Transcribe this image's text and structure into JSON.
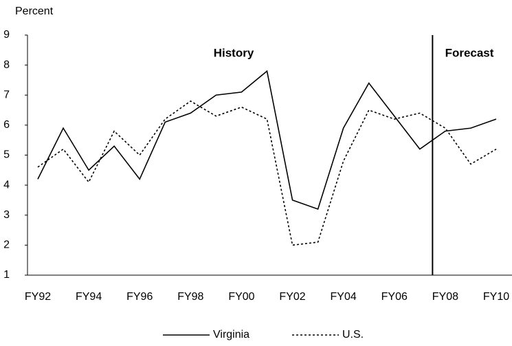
{
  "chart_data": {
    "type": "line",
    "y_label": "Percent",
    "annotations": [
      "History",
      "Forecast"
    ],
    "categories": [
      "FY92",
      null,
      "FY94",
      null,
      "FY96",
      null,
      "FY98",
      null,
      "FY00",
      null,
      "FY02",
      null,
      "FY04",
      null,
      "FY06",
      null,
      "FY08",
      null,
      "FY10"
    ],
    "series": [
      {
        "name": "Virginia",
        "color": "#000000",
        "style": "solid",
        "values": [
          4.2,
          5.9,
          4.5,
          5.3,
          4.2,
          6.1,
          6.4,
          7.0,
          7.1,
          7.8,
          3.5,
          3.2,
          5.9,
          7.4,
          6.3,
          5.2,
          5.8,
          5.9,
          6.2
        ]
      },
      {
        "name": "U.S.",
        "color": "#000000",
        "style": "dotted",
        "values": [
          4.6,
          5.2,
          4.1,
          5.8,
          5.0,
          6.2,
          6.8,
          6.3,
          6.6,
          6.2,
          2.0,
          2.1,
          4.8,
          6.5,
          6.2,
          6.4,
          5.9,
          4.7,
          5.2
        ]
      }
    ],
    "ylim": [
      1,
      9
    ],
    "yticks": [
      1,
      2,
      3,
      4,
      5,
      6,
      7,
      8,
      9
    ],
    "grid": false
  }
}
